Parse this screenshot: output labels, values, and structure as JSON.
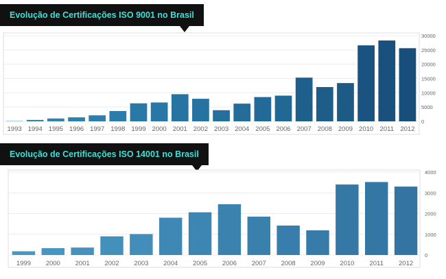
{
  "chart_data": [
    {
      "type": "bar",
      "title": "Evolução de Certificações ISO 9001 no Brasil",
      "categories": [
        "1993",
        "1994",
        "1995",
        "1996",
        "1997",
        "1998",
        "1999",
        "2000",
        "2001",
        "2002",
        "2003",
        "2004",
        "2005",
        "2006",
        "2007",
        "2008",
        "2009",
        "2010",
        "2011",
        "2012"
      ],
      "values": [
        100,
        500,
        1000,
        1400,
        2100,
        3600,
        6300,
        6600,
        9500,
        7900,
        3900,
        6200,
        8500,
        9000,
        15300,
        12000,
        13400,
        26600,
        28300,
        25600
      ],
      "y_ticks": [
        "0",
        "5000",
        "10000",
        "15000",
        "20000",
        "25000",
        "30000"
      ],
      "ylim": [
        0,
        30000
      ],
      "xlabel": "",
      "ylabel": "",
      "grid": true,
      "colors": [
        "#2f86b5",
        "#2e84b3",
        "#2d82b1",
        "#2c80af",
        "#2b7ead",
        "#2a7cab",
        "#2979a8",
        "#2877a6",
        "#2774a3",
        "#2672a1",
        "#256f9e",
        "#246d9b",
        "#236a98",
        "#226895",
        "#1f5f8c",
        "#1e5c89",
        "#1d5a86",
        "#1a5281",
        "#19507e",
        "#184e7b"
      ]
    },
    {
      "type": "bar",
      "title": "Evolução de Certificações ISO 14001 no Brasil",
      "categories": [
        "1999",
        "2000",
        "2001",
        "2002",
        "2003",
        "2004",
        "2005",
        "2006",
        "2007",
        "2008",
        "2009",
        "2010",
        "2011",
        "2012"
      ],
      "values": [
        180,
        330,
        360,
        900,
        1010,
        1800,
        2060,
        2450,
        1850,
        1420,
        1190,
        3400,
        3520,
        3300
      ],
      "y_ticks": [
        "0",
        "1000",
        "2000",
        "3000",
        "4000"
      ],
      "ylim": [
        0,
        4000
      ],
      "xlabel": "",
      "ylabel": "",
      "grid": true,
      "colors": [
        "#4898c4",
        "#4695c2",
        "#4592bf",
        "#4490bd",
        "#428dba",
        "#3f88b5",
        "#3d85b2",
        "#3b82af",
        "#3a80ad",
        "#387dab",
        "#377ba9",
        "#3578a6",
        "#3476a4",
        "#3374a2"
      ]
    }
  ]
}
